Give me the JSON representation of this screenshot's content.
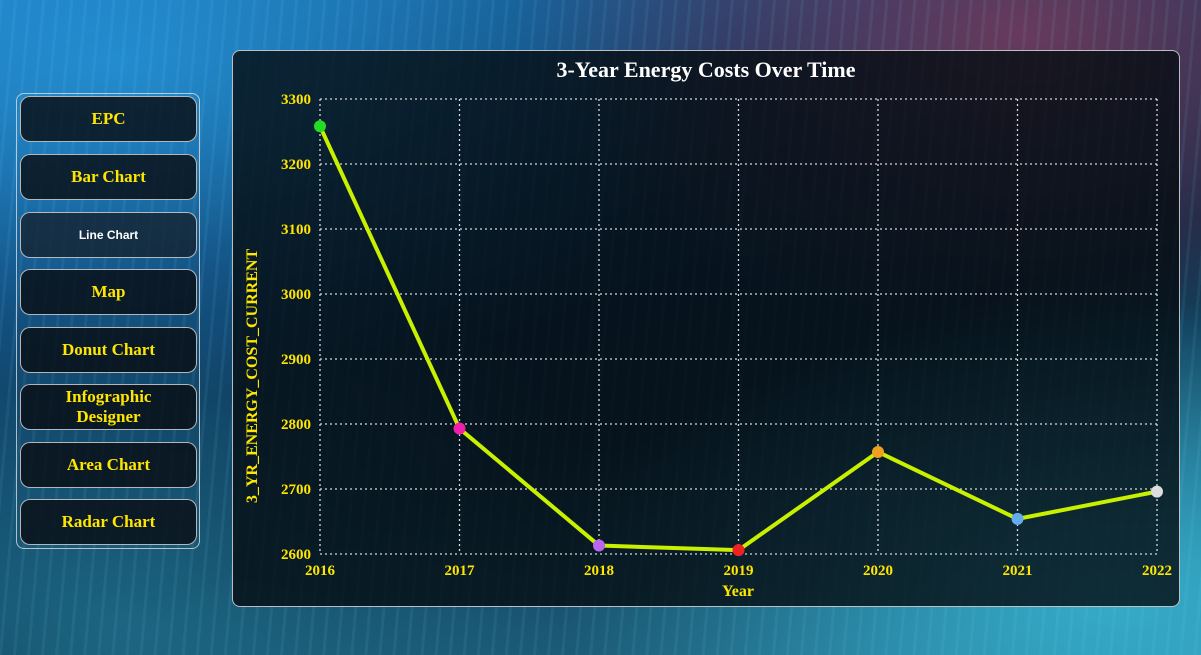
{
  "sidebar": {
    "items": [
      {
        "label": "EPC"
      },
      {
        "label": "Bar Chart"
      },
      {
        "label": "Line Chart"
      },
      {
        "label": "Map"
      },
      {
        "label": "Donut Chart"
      },
      {
        "label": "Infographic Designer"
      },
      {
        "label": "Area Chart"
      },
      {
        "label": "Radar Chart"
      }
    ],
    "active": "Line Chart"
  },
  "colors": {
    "line": "#c8f000",
    "text": "#ffe600",
    "title": "#ffffff",
    "grid": "#d8d8d8"
  },
  "chart_data": {
    "type": "line",
    "title": "3-Year Energy Costs Over Time",
    "xlabel": "Year",
    "ylabel": "3_YR_ENERGY_COST_CURRENT",
    "x": [
      "2016",
      "2017",
      "2018",
      "2019",
      "2020",
      "2021",
      "2022"
    ],
    "values": [
      3258,
      2793,
      2613,
      2606,
      2757,
      2654,
      2696
    ],
    "point_colors": [
      "#22dd22",
      "#ee22aa",
      "#bb66ee",
      "#ee2222",
      "#f0a020",
      "#66aaee",
      "#dddddd"
    ],
    "ylim": [
      2600,
      3300
    ],
    "yticks": [
      2600,
      2700,
      2800,
      2900,
      3000,
      3100,
      3200,
      3300
    ],
    "grid": true
  }
}
